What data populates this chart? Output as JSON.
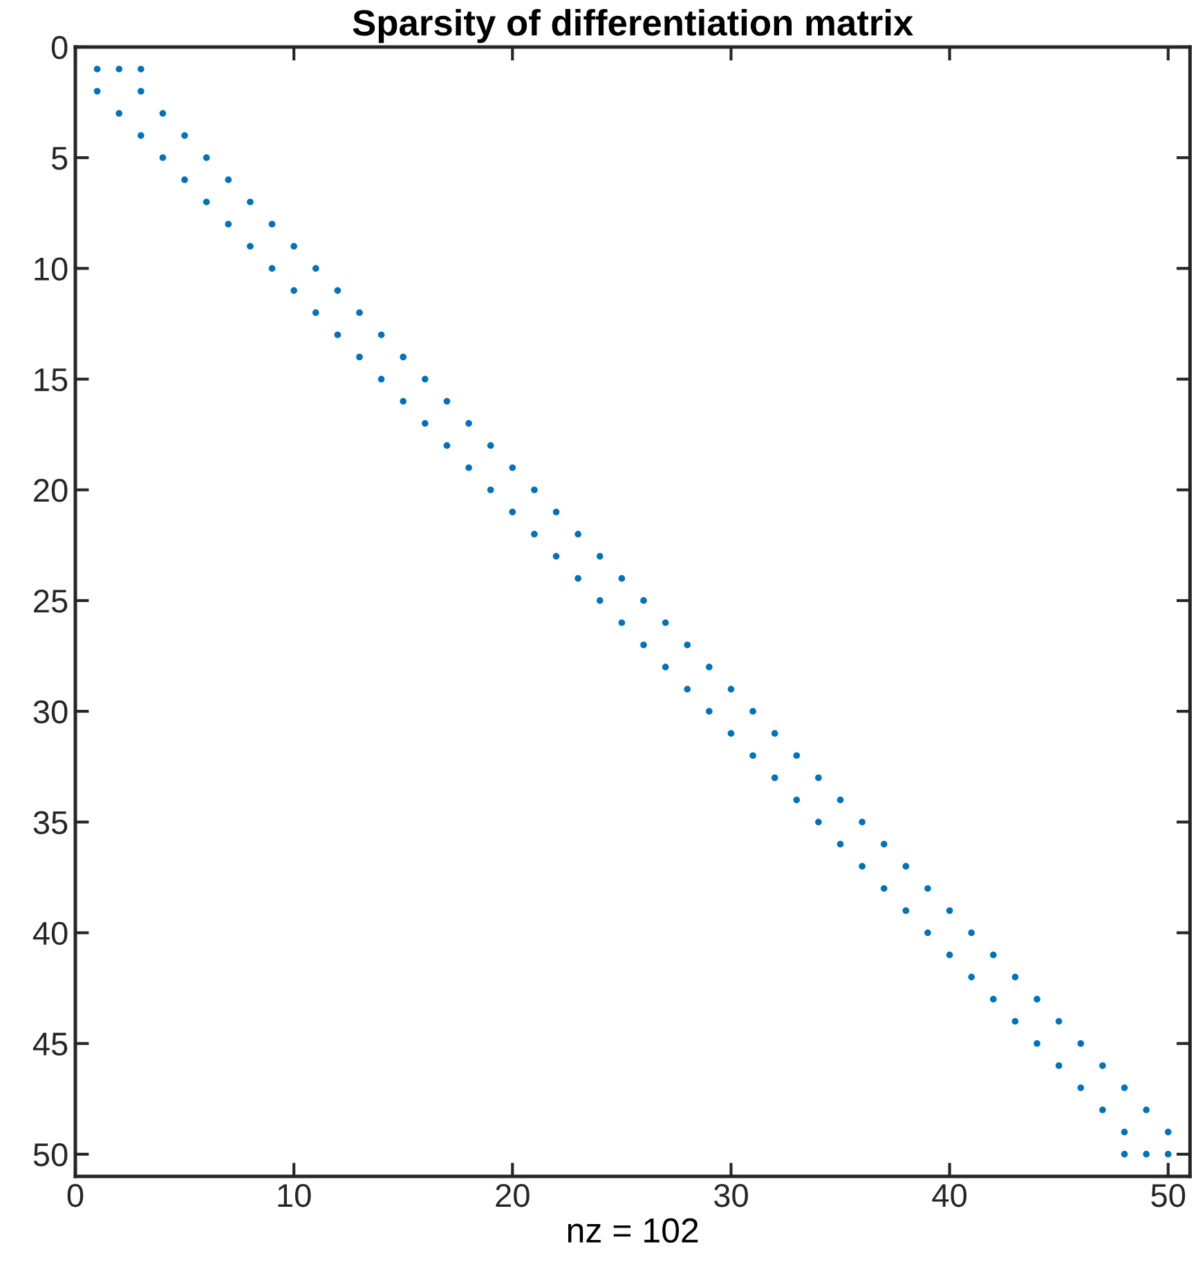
{
  "chart_data": {
    "type": "scatter",
    "title": "Sparsity of differentiation matrix",
    "xlabel": "nz = 102",
    "series": [
      {
        "color": "#0072bd",
        "x": [
          1,
          2,
          3,
          1,
          3,
          2,
          4,
          3,
          5,
          4,
          6,
          5,
          7,
          6,
          8,
          7,
          9,
          8,
          10,
          9,
          11,
          10,
          12,
          11,
          13,
          12,
          14,
          13,
          15,
          14,
          16,
          15,
          17,
          16,
          18,
          17,
          19,
          18,
          20,
          19,
          21,
          20,
          22,
          21,
          23,
          22,
          24,
          23,
          25,
          24,
          26,
          25,
          27,
          26,
          28,
          27,
          29,
          28,
          30,
          29,
          31,
          30,
          32,
          31,
          33,
          32,
          34,
          33,
          35,
          34,
          36,
          35,
          37,
          36,
          38,
          37,
          39,
          38,
          40,
          39,
          41,
          40,
          42,
          41,
          43,
          42,
          44,
          43,
          45,
          44,
          46,
          45,
          47,
          46,
          48,
          47,
          49,
          48,
          50,
          48,
          49,
          50
        ],
        "values": [
          1,
          1,
          1,
          2,
          2,
          3,
          3,
          4,
          4,
          5,
          5,
          6,
          6,
          7,
          7,
          8,
          8,
          9,
          9,
          10,
          10,
          11,
          11,
          12,
          12,
          13,
          13,
          14,
          14,
          15,
          15,
          16,
          16,
          17,
          17,
          18,
          18,
          19,
          19,
          20,
          20,
          21,
          21,
          22,
          22,
          23,
          23,
          24,
          24,
          25,
          25,
          26,
          26,
          27,
          27,
          28,
          28,
          29,
          29,
          30,
          30,
          31,
          31,
          32,
          32,
          33,
          33,
          34,
          34,
          35,
          35,
          36,
          36,
          37,
          37,
          38,
          38,
          39,
          39,
          40,
          40,
          41,
          41,
          42,
          42,
          43,
          43,
          44,
          44,
          45,
          45,
          46,
          46,
          47,
          47,
          48,
          48,
          49,
          49,
          50,
          50,
          50
        ]
      }
    ],
    "xlim": [
      0,
      51
    ],
    "ylim": [
      51,
      0
    ],
    "xticks": [
      0,
      10,
      20,
      30,
      40,
      50
    ],
    "yticks": [
      0,
      5,
      10,
      15,
      20,
      25,
      30,
      35,
      40,
      45,
      50
    ],
    "marker": "circle",
    "grid": false,
    "legend": false
  }
}
